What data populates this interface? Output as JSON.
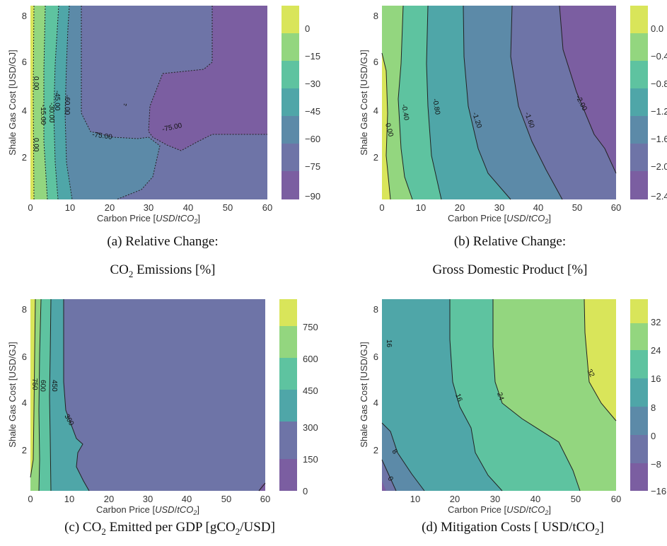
{
  "figure": {
    "captions": [
      {
        "line1": "(a) Relative Change:",
        "line2_pre": "CO",
        "line2_sub": "2",
        "line2_post": "  Emissions [%]"
      },
      {
        "line1": "(b) Relative Change:",
        "line2_pre": "Gross Domestic Product [%]",
        "line2_sub": "",
        "line2_post": ""
      },
      {
        "line1": "",
        "line2_pre": "(c) CO",
        "line2_sub": "2",
        "line2_post": "  Emitted per GDP [gCO",
        "line2_sub2": "2",
        "line2_post2": "/USD]"
      },
      {
        "line1": "",
        "line2_pre": "(d) Mitigation Costs [ USD/tCO",
        "line2_sub": "2",
        "line2_post": "]"
      }
    ]
  },
  "chart_data": [
    {
      "type": "heatmap",
      "id": "a",
      "title": "(a) Relative Change: CO2 Emissions [%]",
      "xlabel": "Carbon Price [USD/tCO2]",
      "ylabel": "Shale Gas Cost [USD/GJ]",
      "xlim": [
        0,
        60
      ],
      "ylim": [
        0.2,
        8.4
      ],
      "xticks": [
        0,
        10,
        20,
        30,
        40,
        50,
        60
      ],
      "yticks": [
        2,
        4,
        6,
        8
      ],
      "colorbar": {
        "ticks": [
          "0",
          "−15",
          "−30",
          "−45",
          "−60",
          "−75",
          "−90"
        ],
        "colors": [
          "#d9e55a",
          "#93d67f",
          "#5ec3a0",
          "#4fa6a8",
          "#5c8aa8",
          "#6e74a7",
          "#7b5ea1"
        ]
      },
      "contour_labels": [
        "0.00",
        "-15.00",
        "-30.00",
        "-45.00",
        "-60.00",
        "-75.00",
        "-75.00",
        "0.00"
      ],
      "regions": [
        {
          "level": "0 to 15",
          "x_range": [
            0,
            1
          ]
        },
        {
          "level": "-15 to 0",
          "x_range": [
            1,
            3
          ]
        },
        {
          "level": "-30 to -15",
          "x_range": [
            3,
            5
          ]
        },
        {
          "level": "-45 to -30",
          "x_range": [
            5,
            9
          ]
        },
        {
          "level": "-60 to -45",
          "x_range": [
            9,
            11
          ]
        },
        {
          "level": "-75 to -60",
          "x_range": [
            11,
            60
          ]
        },
        {
          "level": "-90 to -75",
          "note": "upper-middle and lower-right areas"
        }
      ]
    },
    {
      "type": "heatmap",
      "id": "b",
      "title": "(b) Relative Change: Gross Domestic Product [%]",
      "xlabel": "Carbon Price [USD/tCO2]",
      "ylabel": "Shale Gas Cost [USD/GJ]",
      "xlim": [
        0,
        60
      ],
      "ylim": [
        0.2,
        8.4
      ],
      "xticks": [
        0,
        10,
        20,
        30,
        40,
        50,
        60
      ],
      "yticks": [
        2,
        4,
        6,
        8
      ],
      "colorbar": {
        "ticks": [
          "0.0",
          "−0.4",
          "−0.8",
          "−1.2",
          "−1.6",
          "−2.0",
          "−2.4"
        ],
        "colors": [
          "#d9e55a",
          "#93d67f",
          "#5ec3a0",
          "#4fa6a8",
          "#5c8aa8",
          "#6e74a7",
          "#7b5ea1"
        ]
      },
      "contour_labels": [
        "0.00",
        "-0.40",
        "-0.80",
        "-1.20",
        "-1.60",
        "-2.00"
      ],
      "contour_x_at_top": [
        0.5,
        5,
        13,
        22,
        33,
        46
      ],
      "contour_x_at_bottom": [
        2.5,
        12,
        22,
        33,
        46,
        60
      ]
    },
    {
      "type": "heatmap",
      "id": "c",
      "title": "(c) CO2 Emitted per GDP [gCO2/USD]",
      "xlabel": "Carbon Price [USD/tCO2]",
      "ylabel": "Shale Gas Cost [USD/GJ]",
      "xlim": [
        0,
        60
      ],
      "ylim": [
        0.2,
        8.4
      ],
      "xticks": [
        0,
        10,
        20,
        30,
        40,
        50,
        60
      ],
      "yticks": [
        2,
        4,
        6,
        8
      ],
      "colorbar": {
        "ticks": [
          "750",
          "600",
          "450",
          "300",
          "150",
          "0"
        ],
        "colors": [
          "#d9e55a",
          "#93d67f",
          "#5ec3a0",
          "#4fa6a8",
          "#6e74a7",
          "#7b5ea1"
        ]
      },
      "contour_labels": [
        "750",
        "600",
        "450",
        "300"
      ]
    },
    {
      "type": "heatmap",
      "id": "d",
      "title": "(d) Mitigation Costs [ USD/tCO2]",
      "xlabel": "Carbon Price [USD/tCO2]",
      "ylabel": "Shale Gas Cost [USD/GJ]",
      "xlim": [
        1,
        60
      ],
      "ylim": [
        0.2,
        8.4
      ],
      "xticks": [
        10,
        20,
        30,
        40,
        50,
        60
      ],
      "yticks": [
        2,
        4,
        6,
        8
      ],
      "colorbar": {
        "ticks": [
          "32",
          "24",
          "16",
          "8",
          "0",
          "−8",
          "−16"
        ],
        "colors": [
          "#d9e55a",
          "#93d67f",
          "#5ec3a0",
          "#4fa6a8",
          "#5c8aa8",
          "#6e74a7",
          "#7b5ea1"
        ]
      },
      "contour_labels": [
        "16",
        "16",
        "24",
        "32",
        "8",
        "0"
      ]
    }
  ]
}
